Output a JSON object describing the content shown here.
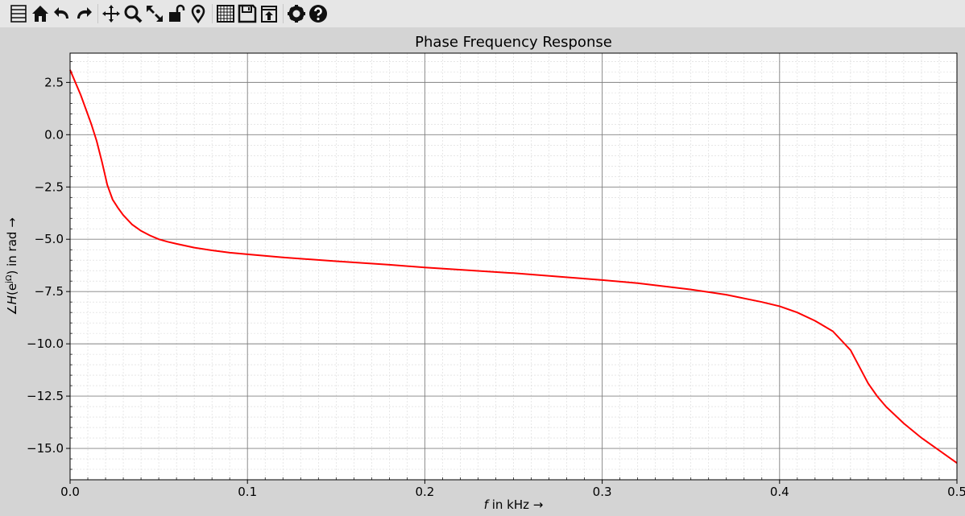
{
  "toolbar": {
    "buttons": [
      {
        "icon": "list-icon"
      },
      {
        "icon": "home-icon"
      },
      {
        "icon": "back-arrow-icon"
      },
      {
        "icon": "forward-arrow-icon"
      },
      {
        "icon": "pan-icon"
      },
      {
        "icon": "zoom-icon"
      },
      {
        "icon": "autoscale-icon"
      },
      {
        "icon": "lock-icon"
      },
      {
        "icon": "marker-icon"
      },
      {
        "icon": "grid-icon"
      },
      {
        "icon": "save-icon"
      },
      {
        "icon": "export-icon"
      },
      {
        "icon": "gear-icon"
      },
      {
        "icon": "help-icon"
      }
    ]
  },
  "chart_data": {
    "type": "line",
    "title": "Phase Frequency Response",
    "xlabel_italic": "f",
    "xlabel_rest": " in kHz →",
    "ylabel_prefix": "∠",
    "ylabel_italic": "H",
    "ylabel_rest": "(e",
    "ylabel_sup": "jΩ",
    "ylabel_end": ") in rad →",
    "xlim": [
      0.0,
      0.5
    ],
    "ylim": [
      -16.5,
      3.9
    ],
    "xticks": [
      "0.0",
      "0.1",
      "0.2",
      "0.3",
      "0.4",
      "0.5"
    ],
    "yticks": [
      "2.5",
      "0.0",
      "−2.5",
      "−5.0",
      "−7.5",
      "−10.0",
      "−12.5",
      "−15.0"
    ],
    "grid": true,
    "line_color": "#ff0000",
    "series": [
      {
        "x": [
          0.0,
          0.003,
          0.006,
          0.009,
          0.012,
          0.015,
          0.018,
          0.021,
          0.024,
          0.027,
          0.03,
          0.035,
          0.04,
          0.045,
          0.05,
          0.055,
          0.06,
          0.07,
          0.08,
          0.09,
          0.1,
          0.12,
          0.15,
          0.18,
          0.2,
          0.25,
          0.3,
          0.32,
          0.35,
          0.37,
          0.39,
          0.4,
          0.41,
          0.42,
          0.43,
          0.44,
          0.445,
          0.45,
          0.455,
          0.46,
          0.47,
          0.48,
          0.49,
          0.5
        ],
        "y": [
          3.1,
          2.5,
          1.9,
          1.2,
          0.5,
          -0.3,
          -1.3,
          -2.4,
          -3.1,
          -3.5,
          -3.85,
          -4.3,
          -4.6,
          -4.82,
          -5.0,
          -5.12,
          -5.22,
          -5.4,
          -5.53,
          -5.64,
          -5.72,
          -5.87,
          -6.05,
          -6.22,
          -6.35,
          -6.62,
          -6.95,
          -7.1,
          -7.4,
          -7.65,
          -8.0,
          -8.2,
          -8.5,
          -8.9,
          -9.4,
          -10.3,
          -11.1,
          -11.9,
          -12.5,
          -13.0,
          -13.8,
          -14.5,
          -15.1,
          -15.7
        ]
      }
    ]
  }
}
